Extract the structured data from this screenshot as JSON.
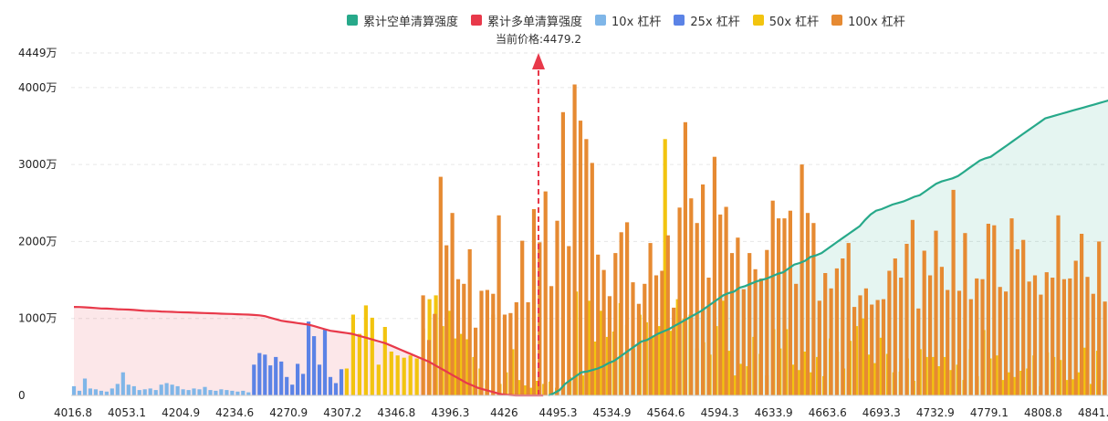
{
  "legend": [
    {
      "label": "累计空单清算强度",
      "color": "#27a98a"
    },
    {
      "label": "累计多单清算强度",
      "color": "#e8394a"
    },
    {
      "label": "10x 杠杆",
      "color": "#7fb6e8"
    },
    {
      "label": "25x 杠杆",
      "color": "#5b83e6"
    },
    {
      "label": "50x 杠杆",
      "color": "#f2c40f"
    },
    {
      "label": "100x 杠杆",
      "color": "#e68a32"
    }
  ],
  "current_price_label": "当前价格:4479.2",
  "chart_data": {
    "type": "bar",
    "y_unit": "万",
    "ylim": [
      0,
      4449
    ],
    "y_ticks": [
      "4449万",
      "4000万",
      "3000万",
      "2000万",
      "1000万",
      "0"
    ],
    "y_tick_values": [
      4449,
      4000,
      3000,
      2000,
      1000,
      0
    ],
    "x_ticks": [
      "4016.8",
      "4053.1",
      "4204.9",
      "4234.6",
      "4270.9",
      "4307.2",
      "4346.8",
      "4396.3",
      "4426",
      "4495.3",
      "4534.9",
      "4564.6",
      "4594.3",
      "4633.9",
      "4663.6",
      "4693.3",
      "4732.9",
      "4779.1",
      "4808.8",
      "4841.8"
    ],
    "current_price": 4479.2,
    "grid": true,
    "legend_position": "top",
    "series": [
      {
        "name": "10x 杠杆",
        "color": "#7fb6e8",
        "values": [
          120,
          60,
          220,
          90,
          80,
          60,
          50,
          90,
          150,
          300,
          140,
          120,
          70,
          80,
          90,
          70,
          140,
          160,
          140,
          120,
          80,
          70,
          90,
          80,
          110,
          70,
          60,
          80,
          70,
          60,
          50,
          60,
          40
        ]
      },
      {
        "name": "25x 杠杆",
        "color": "#5b83e6",
        "values": [
          400,
          550,
          530,
          390,
          500,
          440,
          240,
          140,
          410,
          280,
          960,
          770,
          400,
          860,
          240,
          160,
          340
        ]
      },
      {
        "name": "50x 杠杆",
        "color": "#f2c40f",
        "values": [
          350,
          1050,
          800,
          1170,
          1010,
          400,
          890,
          570,
          520,
          490,
          520,
          480,
          870,
          1250,
          1300,
          900,
          1100,
          740,
          800,
          730,
          500,
          350,
          200,
          1050,
          150,
          300,
          600,
          200,
          130,
          100,
          190,
          150,
          180,
          100,
          130,
          240,
          1350,
          260,
          1230,
          700,
          1100,
          760,
          830,
          1200,
          920,
          610,
          1050,
          950,
          760,
          900,
          3330,
          840,
          1250,
          1000,
          1050,
          610,
          690,
          530,
          900,
          1230,
          580,
          260,
          410,
          380,
          760,
          540,
          260,
          860,
          610,
          860,
          400,
          330,
          570,
          300,
          500,
          250,
          740,
          570,
          350,
          710,
          900,
          1000,
          530,
          420,
          750,
          540,
          300,
          310,
          480,
          190,
          600,
          500,
          500,
          380,
          500,
          330,
          400,
          200,
          600,
          250,
          850,
          480,
          520,
          200,
          300,
          240,
          320,
          350,
          520,
          120,
          560,
          500,
          460,
          200,
          210,
          300,
          620,
          150,
          580,
          200
        ]
      },
      {
        "name": "100x 杠杆",
        "color": "#e68a32",
        "values": [
          1300,
          720,
          1060,
          2840,
          1950,
          2370,
          1510,
          1450,
          1900,
          880,
          1360,
          1370,
          1320,
          2340,
          1050,
          1070,
          1210,
          2010,
          1210,
          2420,
          1990,
          2650,
          1420,
          2270,
          3680,
          1940,
          4040,
          3570,
          3330,
          3020,
          1830,
          1630,
          1290,
          1850,
          2120,
          2250,
          1470,
          1190,
          1450,
          1980,
          1560,
          1620,
          2080,
          1140,
          2440,
          3550,
          2560,
          2240,
          2740,
          1530,
          3100,
          2350,
          2450,
          1850,
          2050,
          1380,
          1850,
          1640,
          1520,
          1890,
          2530,
          2300,
          2300,
          2400,
          1450,
          3000,
          2370,
          2240,
          1230,
          1590,
          1390,
          1650,
          1780,
          1980,
          1150,
          1300,
          1390,
          1180,
          1240,
          1250,
          1620,
          1780,
          1530,
          1970,
          2280,
          1130,
          1880,
          1560,
          2140,
          1670,
          1370,
          2670,
          1360,
          2110,
          1250,
          1520,
          1510,
          2230,
          2210,
          1410,
          1350,
          2300,
          1900,
          2020,
          1480,
          1560,
          1310,
          1600,
          1530,
          2340,
          1510,
          1520,
          1750,
          2100,
          1540,
          1320,
          2000,
          1220
        ]
      },
      {
        "name": "累计空单清算强度",
        "color": "#27a98a",
        "type": "area",
        "x_index_start": 87,
        "x_index_end": 190,
        "values": [
          0,
          30,
          70,
          150,
          200,
          250,
          300,
          310,
          330,
          350,
          380,
          420,
          450,
          500,
          550,
          600,
          650,
          700,
          720,
          760,
          800,
          830,
          860,
          900,
          940,
          980,
          1020,
          1060,
          1100,
          1150,
          1200,
          1250,
          1300,
          1330,
          1350,
          1400,
          1420,
          1450,
          1480,
          1500,
          1520,
          1550,
          1580,
          1600,
          1650,
          1700,
          1720,
          1750,
          1800,
          1820,
          1850,
          1900,
          1950,
          2000,
          2050,
          2100,
          2150,
          2200,
          2280,
          2350,
          2400,
          2420,
          2450,
          2480,
          2500,
          2520,
          2550,
          2580,
          2600,
          2650,
          2700,
          2750,
          2780,
          2800,
          2820,
          2850,
          2900,
          2950,
          3000,
          3050,
          3080,
          3100,
          3150,
          3200,
          3250,
          3300,
          3350,
          3400,
          3450,
          3500,
          3550,
          3600,
          3620,
          3640,
          3660,
          3680,
          3700,
          3720,
          3740,
          3760,
          3780,
          3800,
          3820,
          3840
        ]
      },
      {
        "name": "累计多单清算强度",
        "color": "#e8394a",
        "type": "area",
        "x_index_start": 0,
        "x_index_end": 86,
        "values": [
          1150,
          1148,
          1145,
          1140,
          1135,
          1130,
          1128,
          1125,
          1120,
          1118,
          1115,
          1110,
          1105,
          1100,
          1098,
          1095,
          1090,
          1088,
          1085,
          1082,
          1080,
          1078,
          1075,
          1072,
          1070,
          1068,
          1065,
          1062,
          1060,
          1058,
          1055,
          1052,
          1050,
          1045,
          1040,
          1030,
          1010,
          990,
          970,
          960,
          950,
          940,
          930,
          920,
          900,
          880,
          860,
          840,
          830,
          820,
          810,
          800,
          780,
          760,
          740,
          720,
          700,
          680,
          650,
          620,
          590,
          560,
          530,
          500,
          470,
          440,
          400,
          360,
          320,
          280,
          240,
          200,
          160,
          130,
          100,
          80,
          60,
          40,
          20,
          10,
          5,
          0,
          0,
          0,
          0,
          0,
          0
        ]
      }
    ]
  }
}
